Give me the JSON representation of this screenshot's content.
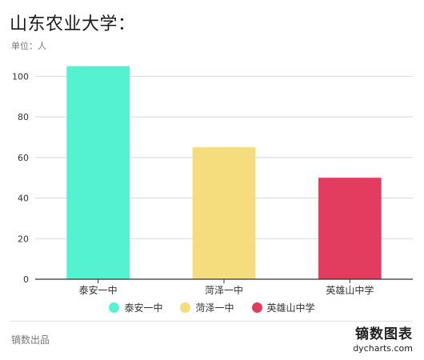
{
  "title": "山东农业大学：",
  "subtitle": "单位：人",
  "footer": {
    "source": "镝数出品",
    "brand_name": "镝数图表",
    "brand_url": "dycharts.com"
  },
  "colors": {
    "grid": "#d8d8d8",
    "axis": "#333333",
    "tick_text": "#333333"
  },
  "chart_data": {
    "type": "bar",
    "title": "山东农业大学：",
    "subtitle": "单位：人",
    "categories": [
      "泰安一中",
      "菏泽一中",
      "英雄山中学"
    ],
    "values": [
      105,
      65,
      50
    ],
    "colors": [
      "#55f2d2",
      "#f5dc7d",
      "#e23c5e"
    ],
    "xlabel": "",
    "ylabel": "",
    "ylim": [
      0,
      110
    ],
    "yticks": [
      0,
      20,
      40,
      60,
      80,
      100
    ],
    "grid": true,
    "legend": "bottom-center"
  }
}
